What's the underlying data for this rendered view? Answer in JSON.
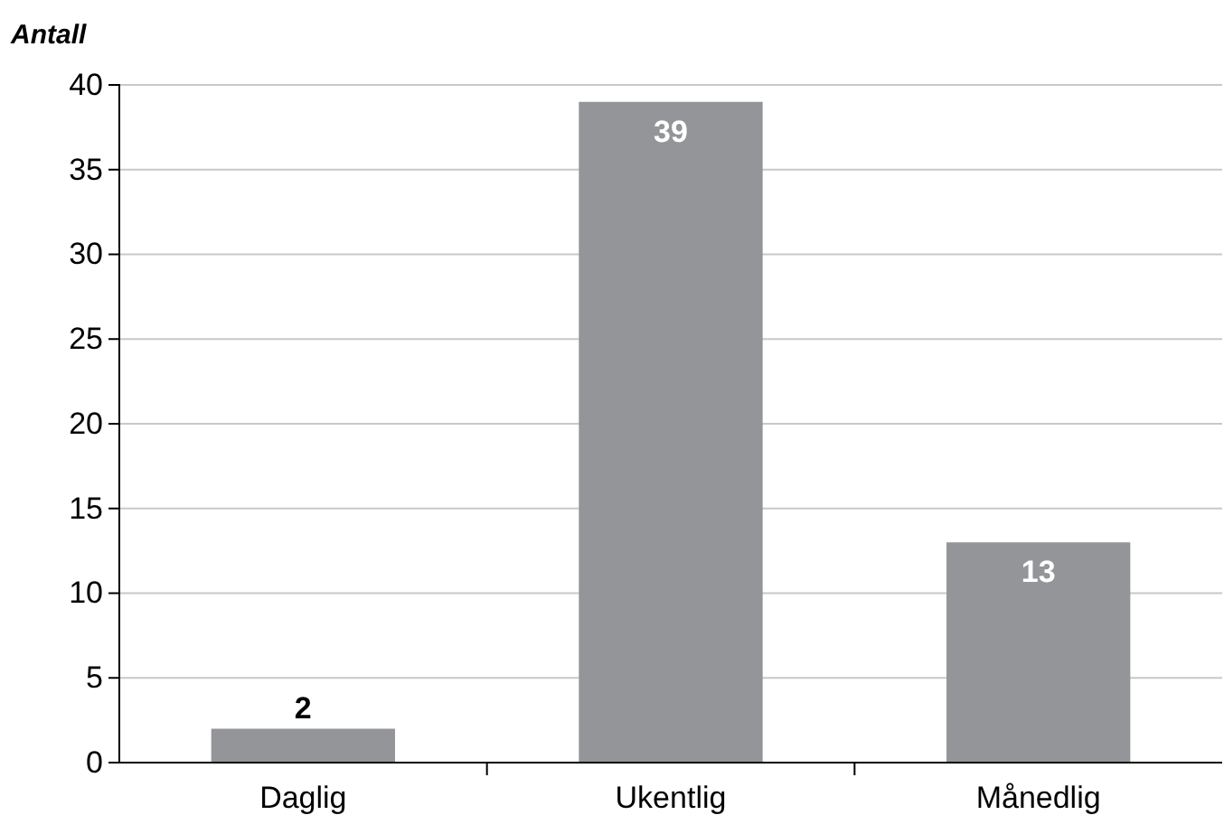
{
  "chart_data": {
    "type": "bar",
    "ylabel": "Antall",
    "categories": [
      "Daglig",
      "Ukentlig",
      "Månedlig"
    ],
    "values": [
      2,
      39,
      13
    ],
    "color": "#939598",
    "ylim": [
      0,
      40
    ],
    "yticks": [
      0,
      5,
      10,
      15,
      20,
      25,
      30,
      35,
      40
    ],
    "grid": "y",
    "data_labels": true
  }
}
